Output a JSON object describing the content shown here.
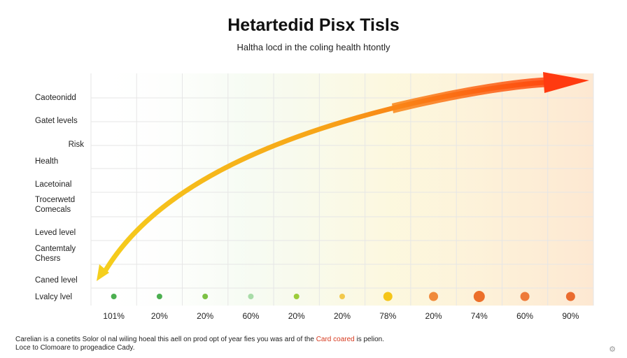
{
  "title": "Hetartedid Pisx Tisls",
  "subtitle": "Haltha locd in the coling health htontly",
  "note": {
    "before": "Carelian is a conetits Solor ol nal wiling hoeal this aell on prod opt of year fies you was ard of the",
    "highlight": "Card coared",
    "after": "is pelion.",
    "line2": "Loce to Clomoare to progeadice Cady."
  },
  "colors": {
    "grid": "#e6e6e6",
    "arrow_start": "#f5cf1d",
    "arrow_mid": "#f7a418",
    "arrow_end": "#ff3a10",
    "accent": "#d63a1f"
  },
  "icons": {
    "corner": "settings-icon"
  },
  "chart_data": {
    "type": "scatter",
    "title": "Hetartedid Pisx Tisls",
    "subtitle": "Haltha locd in the coling health htontly",
    "x_tick_labels": [
      "101%",
      "20%",
      "20%",
      "60%",
      "20%",
      "20%",
      "78%",
      "20%",
      "74%",
      "60%",
      "90%"
    ],
    "y_tick_labels": [
      "Lvalcy lvel",
      "Caned level",
      "Cantemtaly Chesrs",
      "Leved level",
      "Trocerwetd Comecals",
      "Lacetoinal",
      "Health",
      "Risk",
      "Gatet levels",
      "Caoteonidd"
    ],
    "grid": true,
    "series": [
      {
        "points": [
          {
            "x": "101%",
            "color": "#4caf50",
            "size": "small"
          },
          {
            "x": "20%",
            "color": "#4caf50",
            "size": "small"
          },
          {
            "x": "20%",
            "color": "#7cc144",
            "size": "small"
          },
          {
            "x": "60%",
            "color": "#a8dca8",
            "size": "small"
          },
          {
            "x": "20%",
            "color": "#9ccc3a",
            "size": "small"
          },
          {
            "x": "20%",
            "color": "#f2c94c",
            "size": "small"
          },
          {
            "x": "78%",
            "color": "#f5c518",
            "size": "medium"
          },
          {
            "x": "20%",
            "color": "#f08a3a",
            "size": "medium"
          },
          {
            "x": "74%",
            "color": "#ec6f2a",
            "size": "large"
          },
          {
            "x": "60%",
            "color": "#ee7a3a",
            "size": "medium"
          },
          {
            "x": "90%",
            "color": "#ea6b2e",
            "size": "medium"
          }
        ]
      }
    ],
    "trend_arrow": {
      "direction": "bidirectional",
      "from": "bottom-left",
      "to": "top-right",
      "color_from": "#f5cf1d",
      "color_to": "#ff3a10"
    }
  }
}
